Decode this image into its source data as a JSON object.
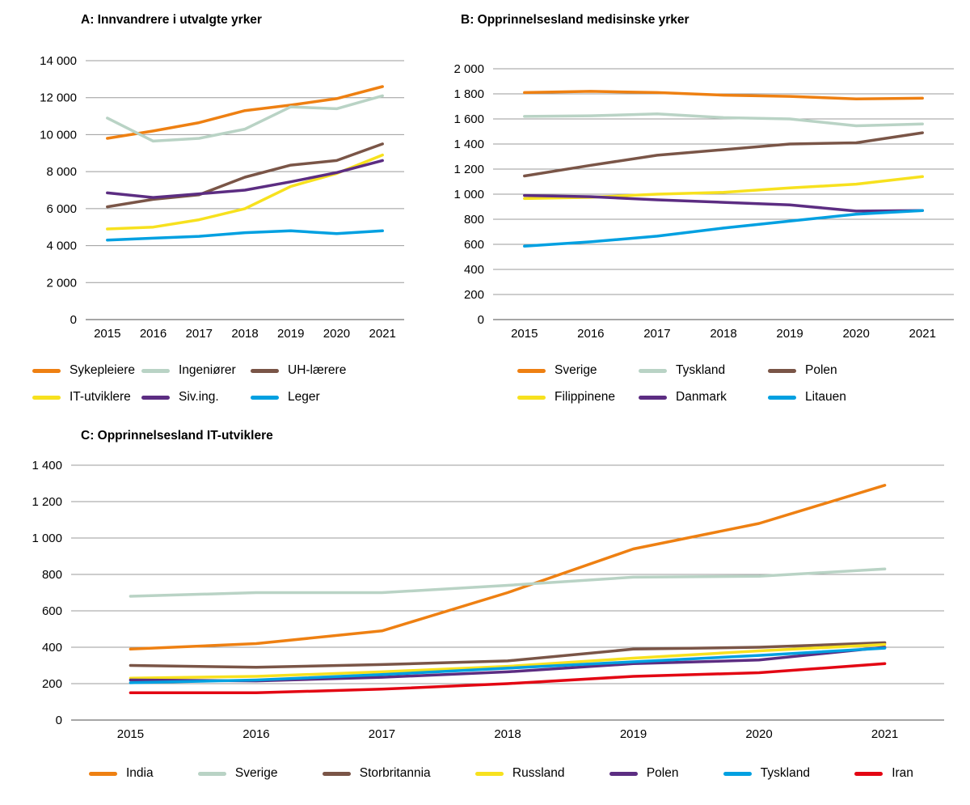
{
  "page": {
    "background": "#ffffff"
  },
  "chart_data": [
    {
      "id": "A",
      "type": "line",
      "title": "A: Innvandrere i utvalgte yrker",
      "x": [
        "2015",
        "2016",
        "2017",
        "2018",
        "2019",
        "2020",
        "2021"
      ],
      "ylim": [
        0,
        14000
      ],
      "ytick_step": 2000,
      "grid": true,
      "legend_position": "bottom",
      "series": [
        {
          "name": "Sykepleiere",
          "color": "#ee8012",
          "values": [
            9800,
            10200,
            10650,
            11300,
            11600,
            11950,
            12600
          ]
        },
        {
          "name": "Ingeniører",
          "color": "#b9d3c5",
          "values": [
            10900,
            9650,
            9800,
            10300,
            11500,
            11400,
            12100
          ]
        },
        {
          "name": "UH-lærere",
          "color": "#7a5547",
          "values": [
            6100,
            6500,
            6750,
            7700,
            8350,
            8600,
            9500
          ]
        },
        {
          "name": "IT-utviklere",
          "color": "#f7e11e",
          "values": [
            4900,
            5000,
            5400,
            6000,
            7200,
            7900,
            8900
          ]
        },
        {
          "name": "Siv.ing.",
          "color": "#5c2d82",
          "values": [
            6850,
            6600,
            6800,
            7000,
            7450,
            7950,
            8600
          ]
        },
        {
          "name": "Leger",
          "color": "#00a0e1",
          "values": [
            4300,
            4400,
            4500,
            4700,
            4800,
            4650,
            4800
          ]
        }
      ]
    },
    {
      "id": "B",
      "type": "line",
      "title": "B: Opprinnelsesland medisinske yrker",
      "x": [
        "2015",
        "2016",
        "2017",
        "2018",
        "2019",
        "2020",
        "2021"
      ],
      "ylim": [
        0,
        2000
      ],
      "ytick_step": 200,
      "grid": true,
      "legend_position": "bottom",
      "series": [
        {
          "name": "Sverige",
          "color": "#ee8012",
          "values": [
            1810,
            1820,
            1810,
            1790,
            1780,
            1760,
            1765
          ]
        },
        {
          "name": "Tyskland",
          "color": "#b9d3c5",
          "values": [
            1620,
            1625,
            1640,
            1610,
            1600,
            1545,
            1560
          ]
        },
        {
          "name": "Polen",
          "color": "#7a5547",
          "values": [
            1145,
            1230,
            1310,
            1355,
            1400,
            1410,
            1490
          ]
        },
        {
          "name": "Filippinene",
          "color": "#f7e11e",
          "values": [
            965,
            975,
            1000,
            1015,
            1050,
            1080,
            1140
          ]
        },
        {
          "name": "Danmark",
          "color": "#5c2d82",
          "values": [
            990,
            980,
            955,
            935,
            915,
            865,
            870
          ]
        },
        {
          "name": "Litauen",
          "color": "#00a0e1",
          "values": [
            585,
            620,
            665,
            730,
            785,
            840,
            870
          ]
        }
      ]
    },
    {
      "id": "C",
      "type": "line",
      "title": "C: Opprinnelsesland IT-utviklere",
      "x": [
        "2015",
        "2016",
        "2017",
        "2018",
        "2019",
        "2020",
        "2021"
      ],
      "ylim": [
        0,
        1400
      ],
      "ytick_step": 200,
      "grid": true,
      "legend_position": "bottom",
      "series": [
        {
          "name": "India",
          "color": "#ee8012",
          "values": [
            390,
            420,
            490,
            700,
            940,
            1080,
            1290
          ]
        },
        {
          "name": "Sverige",
          "color": "#b9d3c5",
          "values": [
            680,
            700,
            700,
            740,
            785,
            790,
            830
          ]
        },
        {
          "name": "Storbritannia",
          "color": "#7a5547",
          "values": [
            300,
            290,
            305,
            325,
            390,
            400,
            425
          ]
        },
        {
          "name": "Russland",
          "color": "#f7e11e",
          "values": [
            230,
            240,
            265,
            295,
            340,
            380,
            415
          ]
        },
        {
          "name": "Polen",
          "color": "#5c2d82",
          "values": [
            220,
            215,
            235,
            265,
            310,
            330,
            400
          ]
        },
        {
          "name": "Tyskland",
          "color": "#00a0e1",
          "values": [
            205,
            220,
            250,
            285,
            320,
            355,
            395
          ]
        },
        {
          "name": "Iran",
          "color": "#e30613",
          "values": [
            150,
            150,
            170,
            200,
            240,
            260,
            310
          ]
        }
      ]
    }
  ]
}
